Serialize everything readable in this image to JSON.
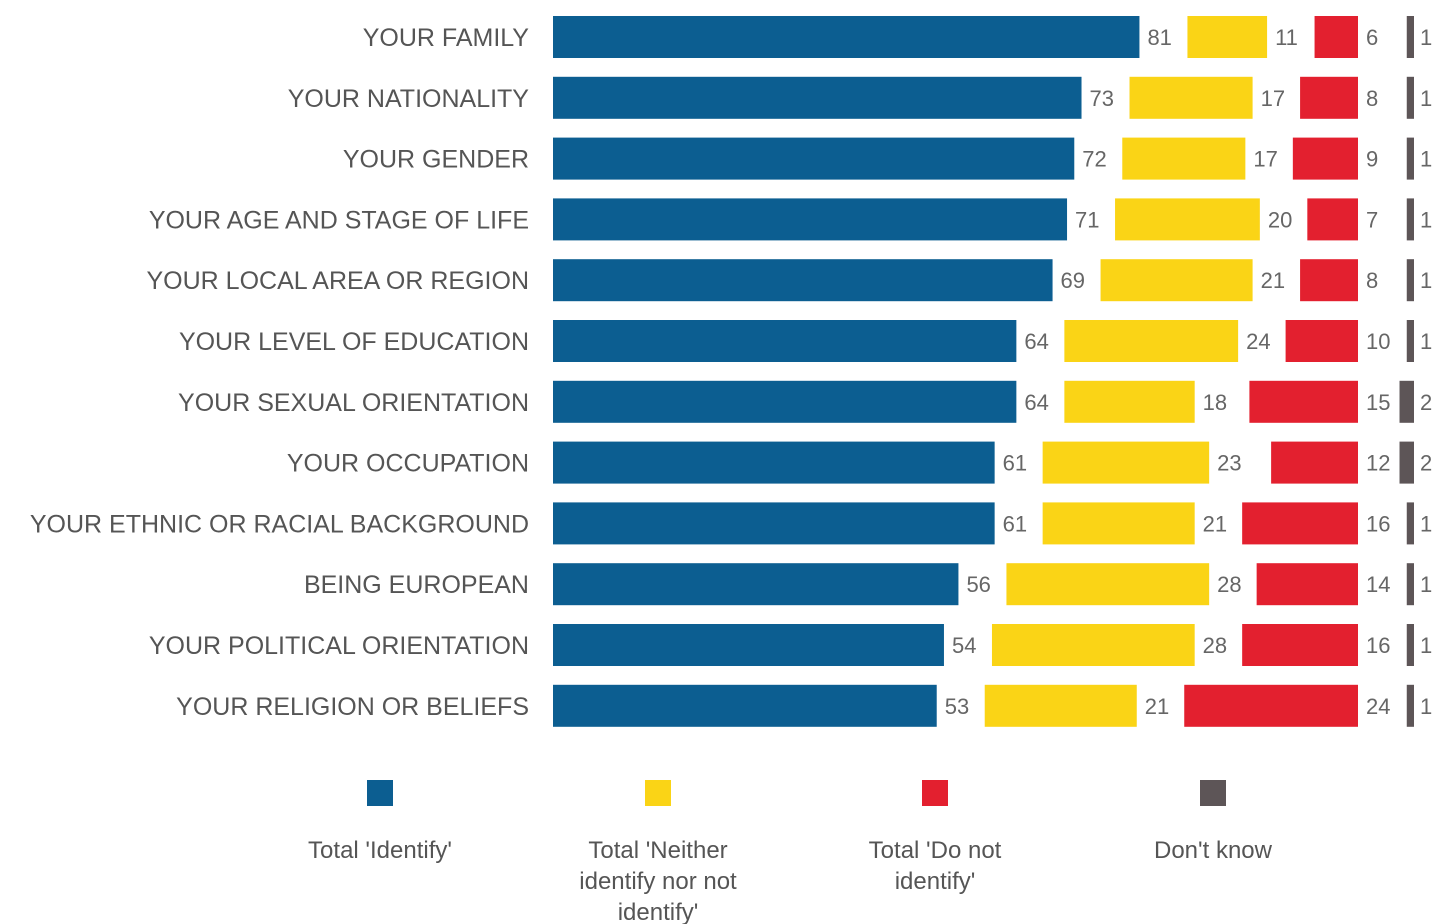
{
  "chart_data": {
    "type": "bar",
    "orientation": "horizontal",
    "stacked": false,
    "grid": false,
    "legend_position": "bottom",
    "categories": [
      "YOUR FAMILY",
      "YOUR NATIONALITY",
      "YOUR GENDER",
      "YOUR AGE AND STAGE OF LIFE",
      "YOUR LOCAL AREA OR REGION",
      "YOUR LEVEL OF EDUCATION",
      "YOUR SEXUAL ORIENTATION",
      "YOUR OCCUPATION",
      "YOUR ETHNIC OR RACIAL BACKGROUND",
      "BEING EUROPEAN",
      "YOUR POLITICAL ORIENTATION",
      "YOUR RELIGION OR BELIEFS"
    ],
    "series": [
      {
        "name": "Total 'Identify'",
        "color": "#0c5e91",
        "values": [
          81,
          73,
          72,
          71,
          69,
          64,
          64,
          61,
          61,
          56,
          54,
          53
        ]
      },
      {
        "name": "Total 'Neither identify nor not identify'",
        "color": "#fad416",
        "values": [
          11,
          17,
          17,
          20,
          21,
          24,
          18,
          23,
          21,
          28,
          28,
          21
        ]
      },
      {
        "name": "Total 'Do not identify'",
        "color": "#e3202f",
        "values": [
          6,
          8,
          9,
          7,
          8,
          10,
          15,
          12,
          16,
          14,
          16,
          24
        ]
      },
      {
        "name": "Don't know",
        "color": "#5d5557",
        "values": [
          1,
          1,
          1,
          1,
          1,
          1,
          2,
          2,
          1,
          1,
          1,
          1
        ]
      }
    ]
  }
}
